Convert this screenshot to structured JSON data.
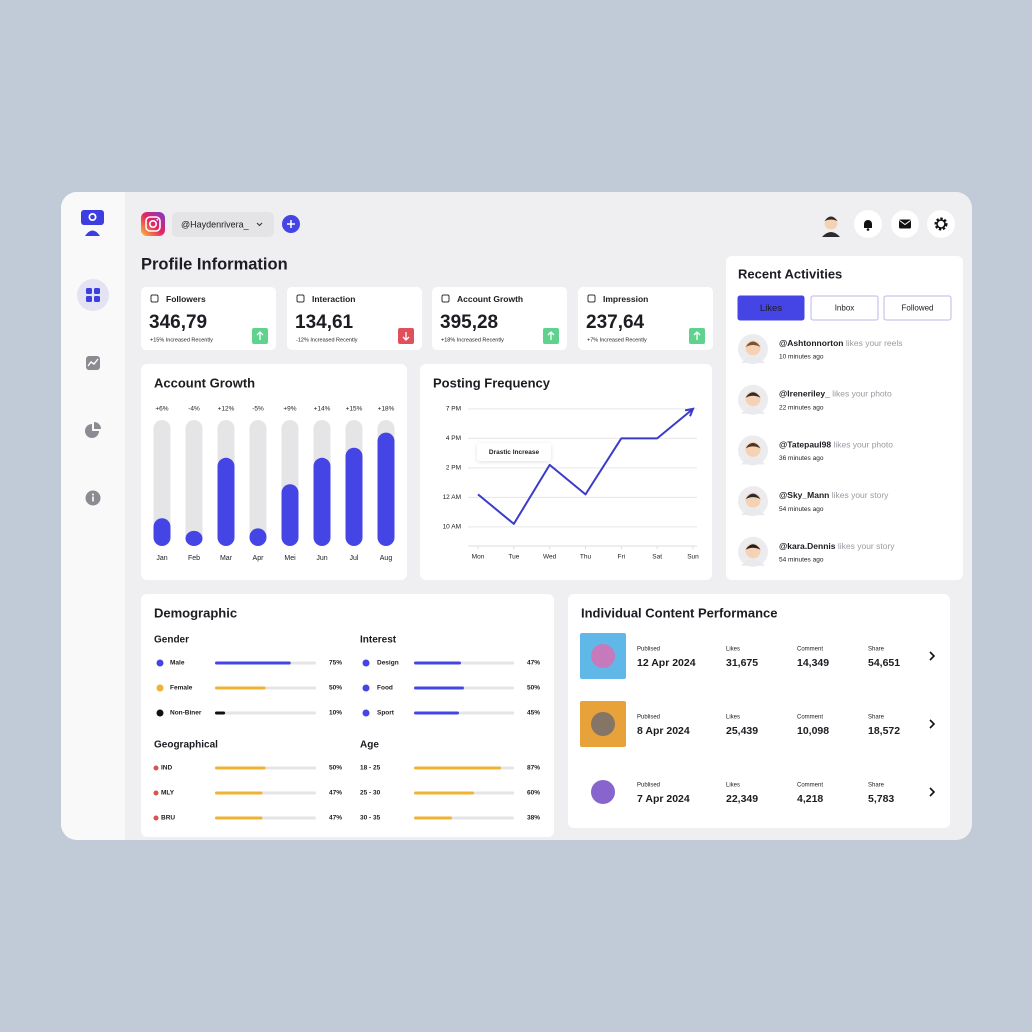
{
  "header": {
    "account": "@Haydenrivera_"
  },
  "profile": {
    "title": "Profile Information",
    "stats": [
      {
        "label": "Followers",
        "value": "346,79",
        "note": "+15% Increased Recently",
        "trend": "up"
      },
      {
        "label": "Interaction",
        "value": "134,61",
        "note": "-12% Increased Recently",
        "trend": "down"
      },
      {
        "label": "Account Growth",
        "value": "395,28",
        "note": "+18% Increased Recently",
        "trend": "up"
      },
      {
        "label": "Impression",
        "value": "237,64",
        "note": "+7% Increased Recently",
        "trend": "up"
      }
    ]
  },
  "chart_data": [
    {
      "type": "bar",
      "title": "Account Growth",
      "categories": [
        "Jan",
        "Feb",
        "Mar",
        "Apr",
        "Mei",
        "Jun",
        "Jul",
        "Aug"
      ],
      "values": [
        22,
        12,
        70,
        14,
        49,
        70,
        78,
        90
      ],
      "ylim": [
        0,
        100
      ],
      "annotations": [
        "+6%",
        "-4%",
        "+12%",
        "-5%",
        "+9%",
        "+14%",
        "+15%",
        "+18%"
      ],
      "color": "#4545e6",
      "track_color": "#e5e5e7"
    },
    {
      "type": "line",
      "title": "Posting Frequency",
      "categories": [
        "Mon",
        "Tue",
        "Wed",
        "Thu",
        "Fri",
        "Sat",
        "Sun"
      ],
      "values": [
        2.1,
        1.1,
        3.1,
        2.1,
        4,
        4,
        5
      ],
      "ylim": [
        0.35,
        5.3
      ],
      "yticks": [
        {
          "value": 1,
          "label": "10 AM"
        },
        {
          "value": 2,
          "label": "12 AM"
        },
        {
          "value": 3,
          "label": "2 PM"
        },
        {
          "value": 4,
          "label": "4 PM"
        },
        {
          "value": 5,
          "label": "7 PM"
        }
      ],
      "annotation": "Drastic Increase",
      "color": "#3b3bc9",
      "grid": true
    }
  ],
  "activities": {
    "title": "Recent Activities",
    "tabs": [
      "Likes",
      "Inbox",
      "Followed"
    ],
    "items": [
      {
        "user": "@Ashtonnorton",
        "action": "likes your reels",
        "time": "10 minutes ago"
      },
      {
        "user": "@Ireneriley_",
        "action": "likes your photo",
        "time": "22 minutes ago"
      },
      {
        "user": "@Tatepaul98",
        "action": "likes your photo",
        "time": "36 minutes ago"
      },
      {
        "user": "@Sky_Mann",
        "action": "likes your story",
        "time": "54 minutes ago"
      },
      {
        "user": "@kara.Dennis",
        "action": "likes your story",
        "time": "54 minutes ago"
      }
    ]
  },
  "demographic": {
    "title": "Demographic",
    "xlim": [
      0,
      100
    ],
    "groups": [
      {
        "title": "Gender",
        "categories": [
          "Male",
          "Female",
          "Non-Biner"
        ],
        "values": [
          75,
          50,
          10
        ],
        "value_labels": [
          "75%",
          "50%",
          "10%"
        ],
        "colors": [
          "#4545e6",
          "#f0b232",
          "#111111"
        ],
        "label_colors": [
          "#4545e6",
          "#f0b232",
          "#1c1c22"
        ]
      },
      {
        "title": "Interest",
        "categories": [
          "Design",
          "Food",
          "Sport"
        ],
        "values": [
          47,
          50,
          45
        ],
        "value_labels": [
          "47%",
          "50%",
          "45%"
        ],
        "colors": [
          "#4545e6",
          "#4545e6",
          "#4545e6"
        ]
      },
      {
        "title": "Geographical",
        "categories": [
          "IND",
          "MLY",
          "BRU"
        ],
        "values": [
          50,
          47,
          47
        ],
        "value_labels": [
          "50%",
          "47%",
          "47%"
        ],
        "colors": [
          "#f0b232",
          "#f0b232",
          "#f0b232"
        ]
      },
      {
        "title": "Age",
        "categories": [
          "18 - 25",
          "25 - 30",
          "30 - 35"
        ],
        "values": [
          87,
          60,
          38
        ],
        "value_labels": [
          "87%",
          "60%",
          "38%"
        ],
        "colors": [
          "#f0b232",
          "#f0b232",
          "#f0b232"
        ]
      }
    ]
  },
  "content": {
    "title": "Individual Content Performance",
    "columns": [
      "Publised",
      "Likes",
      "Comment",
      "Share"
    ],
    "rows": [
      [
        "12 Apr 2024",
        "31,675",
        "14,349",
        "54,651"
      ],
      [
        "8 Apr 2024",
        "25,439",
        "10,098",
        "18,572"
      ],
      [
        "7 Apr 2024",
        "22,349",
        "4,218",
        "5,783"
      ]
    ]
  }
}
